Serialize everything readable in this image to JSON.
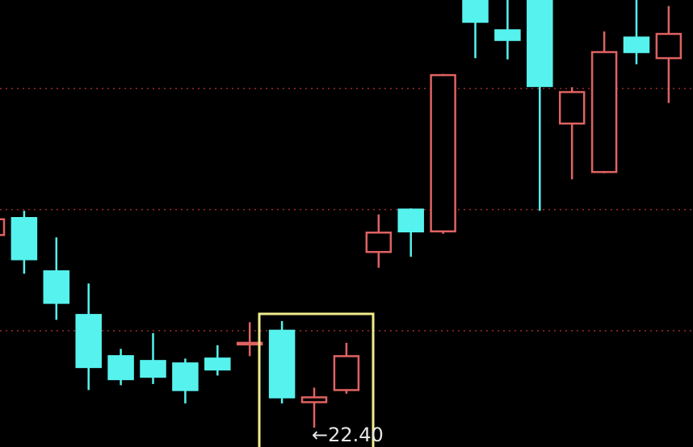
{
  "chart_data": {
    "type": "candlestick",
    "annotation": "←22.40",
    "ylim": [
      22.24,
      25.93
    ],
    "grid_lines": [
      23.2,
      24.2,
      25.2
    ],
    "up_color": "#e06262",
    "down_color": "#56f2ee",
    "grid_color": "#a02828",
    "open": [
      23.99,
      24.13,
      23.69,
      23.33,
      22.99,
      22.95,
      22.93,
      22.97,
      23.09,
      23.2,
      22.61,
      22.71,
      23.85,
      24.2,
      24.02,
      25.93,
      25.68,
      25.93,
      24.91,
      24.51,
      25.62,
      25.45
    ],
    "high": [
      24.12,
      24.19,
      23.97,
      23.59,
      23.05,
      23.18,
      22.97,
      23.08,
      23.27,
      23.28,
      22.73,
      23.1,
      24.16,
      24.21,
      25.32,
      25.93,
      25.93,
      25.93,
      25.21,
      25.67,
      25.93,
      25.88
    ],
    "low": [
      23.99,
      23.67,
      23.29,
      22.71,
      22.75,
      22.76,
      22.6,
      22.83,
      22.99,
      22.6,
      22.4,
      22.68,
      23.72,
      23.81,
      24.0,
      25.45,
      25.44,
      24.19,
      24.45,
      24.5,
      25.4,
      25.08
    ],
    "close": [
      24.12,
      23.79,
      23.43,
      22.9,
      22.8,
      22.82,
      22.71,
      22.88,
      23.1,
      22.65,
      22.65,
      22.99,
      24.01,
      24.02,
      25.31,
      25.75,
      25.6,
      25.22,
      25.17,
      25.5,
      25.5,
      25.65
    ]
  }
}
